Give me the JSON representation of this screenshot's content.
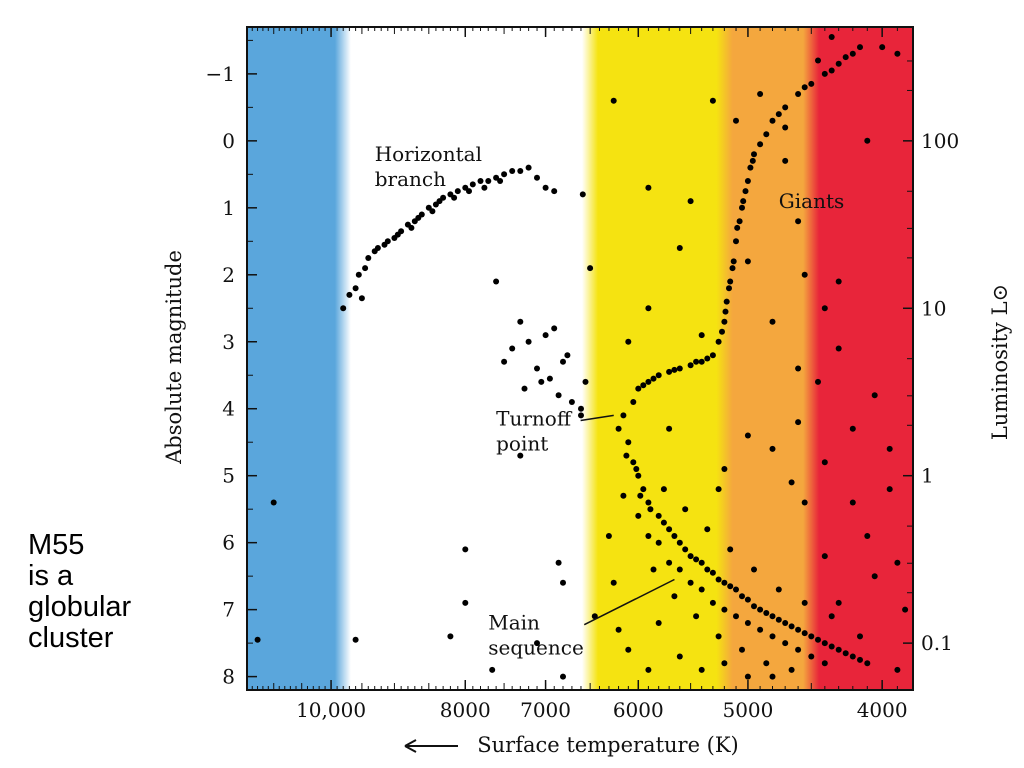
{
  "caption": {
    "lines": [
      "M55",
      "is a",
      "globular",
      "cluster"
    ]
  },
  "chart_data": {
    "type": "scatter",
    "title": "",
    "xlabel": "Surface temperature (K)",
    "ylabel": "Absolute magnitude",
    "y2label": "Luminosity L⊙",
    "x_scale": "log",
    "x_reversed": true,
    "y_reversed": true,
    "xlim": [
      11500,
      3800
    ],
    "ylim": [
      8.2,
      -1.7
    ],
    "x_ticks": [
      {
        "value": 10000,
        "label": "10,000"
      },
      {
        "value": 8000,
        "label": "8000"
      },
      {
        "value": 7000,
        "label": "7000"
      },
      {
        "value": 6000,
        "label": "6000"
      },
      {
        "value": 5000,
        "label": "5000"
      },
      {
        "value": 4000,
        "label": "4000"
      }
    ],
    "y_ticks": [
      {
        "value": -1,
        "label": "−1"
      },
      {
        "value": 0,
        "label": "0"
      },
      {
        "value": 1,
        "label": "1"
      },
      {
        "value": 2,
        "label": "2"
      },
      {
        "value": 3,
        "label": "3"
      },
      {
        "value": 4,
        "label": "4"
      },
      {
        "value": 5,
        "label": "5"
      },
      {
        "value": 6,
        "label": "6"
      },
      {
        "value": 7,
        "label": "7"
      },
      {
        "value": 8,
        "label": "8"
      }
    ],
    "y2_ticks": [
      {
        "value": 100,
        "magnitude": 0,
        "label": "100"
      },
      {
        "value": 10,
        "magnitude": 2.5,
        "label": "10"
      },
      {
        "value": 1,
        "magnitude": 5,
        "label": "1"
      },
      {
        "value": 0.1,
        "magnitude": 7.5,
        "label": "0.1"
      }
    ],
    "annotations": [
      {
        "text": [
          "Horizontal",
          "branch"
        ],
        "temp": 9300,
        "mag": 0.3
      },
      {
        "text": [
          "Giants"
        ],
        "temp": 4750,
        "mag": 1.0
      },
      {
        "text": [
          "Turnoff",
          "point"
        ],
        "temp": 7600,
        "mag": 4.25,
        "arrow_to": {
          "temp": 6250,
          "mag": 4.1
        }
      },
      {
        "text": [
          "Main",
          "sequence"
        ],
        "temp": 7700,
        "mag": 7.3,
        "arrow_to": {
          "temp": 5650,
          "mag": 6.55
        }
      }
    ],
    "color_bands": [
      {
        "from": 11500,
        "to": 9800,
        "color": "#5aa6dc"
      },
      {
        "from": 9800,
        "to": 6500,
        "color": "#ffffff"
      },
      {
        "from": 6500,
        "to": 5200,
        "color": "#f5e311"
      },
      {
        "from": 5200,
        "to": 4500,
        "color": "#f4a73e"
      },
      {
        "from": 4500,
        "to": 3800,
        "color": "#e8253a"
      }
    ],
    "series": [
      {
        "name": "",
        "color": "#000000",
        "points": [
          [
            9300,
            1.65
          ],
          [
            9150,
            1.55
          ],
          [
            9000,
            1.45
          ],
          [
            8900,
            1.35
          ],
          [
            8800,
            1.25
          ],
          [
            8700,
            1.2
          ],
          [
            8600,
            1.1
          ],
          [
            8500,
            1.0
          ],
          [
            8400,
            0.95
          ],
          [
            8300,
            0.85
          ],
          [
            8200,
            0.8
          ],
          [
            8100,
            0.75
          ],
          [
            8000,
            0.7
          ],
          [
            7900,
            0.65
          ],
          [
            7800,
            0.6
          ],
          [
            7700,
            0.6
          ],
          [
            7600,
            0.55
          ],
          [
            7500,
            0.5
          ],
          [
            7400,
            0.45
          ],
          [
            7300,
            0.45
          ],
          [
            7200,
            0.4
          ],
          [
            9400,
            1.75
          ],
          [
            9250,
            1.6
          ],
          [
            9100,
            1.5
          ],
          [
            8950,
            1.4
          ],
          [
            8750,
            1.3
          ],
          [
            8650,
            1.15
          ],
          [
            8450,
            1.05
          ],
          [
            8350,
            0.9
          ],
          [
            8150,
            0.85
          ],
          [
            7950,
            0.75
          ],
          [
            7750,
            0.7
          ],
          [
            7550,
            0.6
          ],
          [
            7100,
            0.55
          ],
          [
            7000,
            0.7
          ],
          [
            6900,
            0.75
          ],
          [
            9600,
            2.2
          ],
          [
            9550,
            2.0
          ],
          [
            9450,
            1.9
          ],
          [
            9700,
            2.3
          ],
          [
            9800,
            2.5
          ],
          [
            9500,
            2.35
          ],
          [
            7000,
            2.9
          ],
          [
            6900,
            2.8
          ],
          [
            7200,
            3.0
          ],
          [
            7400,
            3.1
          ],
          [
            6800,
            3.3
          ],
          [
            7100,
            3.4
          ],
          [
            6950,
            3.55
          ],
          [
            7050,
            3.6
          ],
          [
            6850,
            3.8
          ],
          [
            6700,
            3.9
          ],
          [
            7500,
            3.3
          ],
          [
            7300,
            2.7
          ],
          [
            6750,
            3.2
          ],
          [
            6600,
            4.0
          ],
          [
            7600,
            2.1
          ],
          [
            7250,
            3.7
          ],
          [
            6150,
            4.1
          ],
          [
            6050,
            3.9
          ],
          [
            6000,
            3.7
          ],
          [
            5900,
            3.6
          ],
          [
            5800,
            3.5
          ],
          [
            5700,
            3.45
          ],
          [
            5600,
            3.4
          ],
          [
            5500,
            3.35
          ],
          [
            5400,
            3.3
          ],
          [
            5300,
            3.2
          ],
          [
            5250,
            3.0
          ],
          [
            5200,
            2.7
          ],
          [
            5180,
            2.4
          ],
          [
            5150,
            2.1
          ],
          [
            5120,
            1.8
          ],
          [
            5100,
            1.5
          ],
          [
            5070,
            1.2
          ],
          [
            5040,
            0.9
          ],
          [
            5000,
            0.6
          ],
          [
            4980,
            0.4
          ],
          [
            4960,
            0.3
          ],
          [
            4900,
            0.05
          ],
          [
            4850,
            -0.1
          ],
          [
            4800,
            -0.3
          ],
          [
            4700,
            -0.5
          ],
          [
            4600,
            -0.7
          ],
          [
            4500,
            -0.85
          ],
          [
            4400,
            -1.0
          ],
          [
            4300,
            -1.15
          ],
          [
            4250,
            -1.25
          ],
          [
            4200,
            -1.3
          ],
          [
            4150,
            -1.4
          ],
          [
            5050,
            1.0
          ],
          [
            5090,
            1.3
          ],
          [
            5130,
            1.9
          ],
          [
            5160,
            2.2
          ],
          [
            5190,
            2.55
          ],
          [
            5220,
            2.85
          ],
          [
            5350,
            3.25
          ],
          [
            5450,
            3.3
          ],
          [
            5650,
            3.42
          ],
          [
            5850,
            3.55
          ],
          [
            5950,
            3.65
          ],
          [
            4950,
            0.2
          ],
          [
            5020,
            0.75
          ],
          [
            4750,
            -0.4
          ],
          [
            4550,
            -0.8
          ],
          [
            4350,
            -1.05
          ],
          [
            6200,
            4.3
          ],
          [
            6100,
            4.5
          ],
          [
            6050,
            4.8
          ],
          [
            6000,
            5.0
          ],
          [
            5950,
            5.2
          ],
          [
            5900,
            5.4
          ],
          [
            5800,
            5.6
          ],
          [
            5700,
            5.8
          ],
          [
            5600,
            6.0
          ],
          [
            5500,
            6.2
          ],
          [
            5400,
            6.3
          ],
          [
            5300,
            6.45
          ],
          [
            5200,
            6.6
          ],
          [
            5100,
            6.7
          ],
          [
            5000,
            6.85
          ],
          [
            4900,
            7.0
          ],
          [
            4800,
            7.1
          ],
          [
            4700,
            7.2
          ],
          [
            4600,
            7.3
          ],
          [
            4500,
            7.4
          ],
          [
            4400,
            7.5
          ],
          [
            4300,
            7.6
          ],
          [
            4200,
            7.7
          ],
          [
            4100,
            7.8
          ],
          [
            6120,
            4.7
          ],
          [
            6020,
            4.9
          ],
          [
            5980,
            5.3
          ],
          [
            5880,
            5.5
          ],
          [
            5750,
            5.7
          ],
          [
            5650,
            5.9
          ],
          [
            5550,
            6.1
          ],
          [
            5450,
            6.25
          ],
          [
            5350,
            6.4
          ],
          [
            5250,
            6.55
          ],
          [
            5150,
            6.65
          ],
          [
            5050,
            6.8
          ],
          [
            4950,
            6.95
          ],
          [
            4850,
            7.05
          ],
          [
            4750,
            7.15
          ],
          [
            4650,
            7.25
          ],
          [
            4550,
            7.35
          ],
          [
            4450,
            7.45
          ],
          [
            4350,
            7.55
          ],
          [
            4250,
            7.65
          ],
          [
            4150,
            7.75
          ],
          [
            5900,
            5.9
          ],
          [
            5700,
            6.3
          ],
          [
            5500,
            6.6
          ],
          [
            5300,
            6.9
          ],
          [
            5100,
            7.1
          ],
          [
            4900,
            7.3
          ],
          [
            4700,
            7.5
          ],
          [
            4500,
            7.7
          ],
          [
            6000,
            5.6
          ],
          [
            5800,
            6.0
          ],
          [
            5600,
            6.4
          ],
          [
            5400,
            6.7
          ],
          [
            5200,
            7.0
          ],
          [
            5000,
            7.2
          ],
          [
            4800,
            7.4
          ],
          [
            4600,
            7.6
          ],
          [
            4400,
            7.8
          ],
          [
            5750,
            5.2
          ],
          [
            5550,
            5.5
          ],
          [
            5350,
            5.8
          ],
          [
            5150,
            6.1
          ],
          [
            4950,
            6.4
          ],
          [
            4750,
            6.7
          ],
          [
            4550,
            6.9
          ],
          [
            4350,
            7.1
          ],
          [
            4150,
            7.4
          ],
          [
            6150,
            5.3
          ],
          [
            5850,
            6.4
          ],
          [
            5650,
            6.8
          ],
          [
            5450,
            7.1
          ],
          [
            5250,
            7.4
          ],
          [
            5050,
            7.6
          ],
          [
            4850,
            7.8
          ],
          [
            4650,
            7.9
          ],
          [
            6300,
            5.9
          ],
          [
            6250,
            6.6
          ],
          [
            6200,
            7.3
          ],
          [
            6100,
            7.6
          ],
          [
            5900,
            7.9
          ],
          [
            5800,
            7.2
          ],
          [
            5600,
            7.7
          ],
          [
            5400,
            7.9
          ],
          [
            5200,
            7.8
          ],
          [
            5000,
            8.0
          ],
          [
            4800,
            8.0
          ],
          [
            4400,
            6.2
          ],
          [
            4300,
            6.9
          ],
          [
            4200,
            5.4
          ],
          [
            4100,
            5.9
          ],
          [
            4050,
            6.5
          ],
          [
            3950,
            5.2
          ],
          [
            3900,
            6.3
          ],
          [
            3850,
            7.0
          ],
          [
            3900,
            7.9
          ],
          [
            6100,
            3.0
          ],
          [
            5900,
            2.5
          ],
          [
            5600,
            1.6
          ],
          [
            5500,
            0.9
          ],
          [
            5300,
            -0.6
          ],
          [
            5100,
            -0.3
          ],
          [
            4900,
            -0.7
          ],
          [
            4700,
            0.3
          ],
          [
            4600,
            1.2
          ],
          [
            4550,
            2.0
          ],
          [
            4400,
            2.5
          ],
          [
            4300,
            3.1
          ],
          [
            4450,
            3.6
          ],
          [
            4600,
            4.2
          ],
          [
            4800,
            4.6
          ],
          [
            5000,
            4.4
          ],
          [
            5200,
            4.9
          ],
          [
            4400,
            4.8
          ],
          [
            4200,
            4.3
          ],
          [
            4050,
            3.8
          ],
          [
            3950,
            4.6
          ],
          [
            4700,
            -0.2
          ],
          [
            5400,
            2.9
          ],
          [
            5700,
            4.3
          ],
          [
            5000,
            1.8
          ],
          [
            4800,
            2.7
          ],
          [
            4600,
            3.4
          ],
          [
            4300,
            2.1
          ],
          [
            4100,
            0.0
          ],
          [
            4000,
            -1.4
          ],
          [
            3900,
            -1.3
          ],
          [
            4450,
            -1.2
          ],
          [
            4350,
            -1.55
          ],
          [
            4650,
            5.1
          ],
          [
            4550,
            5.4
          ],
          [
            5250,
            5.2
          ],
          [
            6550,
            3.6
          ],
          [
            6600,
            4.1
          ],
          [
            6500,
            1.9
          ],
          [
            6580,
            0.8
          ],
          [
            6250,
            -0.6
          ],
          [
            5900,
            0.7
          ],
          [
            11000,
            5.4
          ],
          [
            11300,
            7.45
          ],
          [
            9600,
            7.45
          ],
          [
            8000,
            6.1
          ],
          [
            8000,
            6.9
          ],
          [
            8200,
            7.4
          ],
          [
            6850,
            6.3
          ],
          [
            6800,
            6.6
          ],
          [
            6450,
            7.1
          ],
          [
            7100,
            7.5
          ],
          [
            7650,
            7.9
          ],
          [
            6800,
            8.0
          ],
          [
            7300,
            4.7
          ]
        ]
      }
    ]
  }
}
